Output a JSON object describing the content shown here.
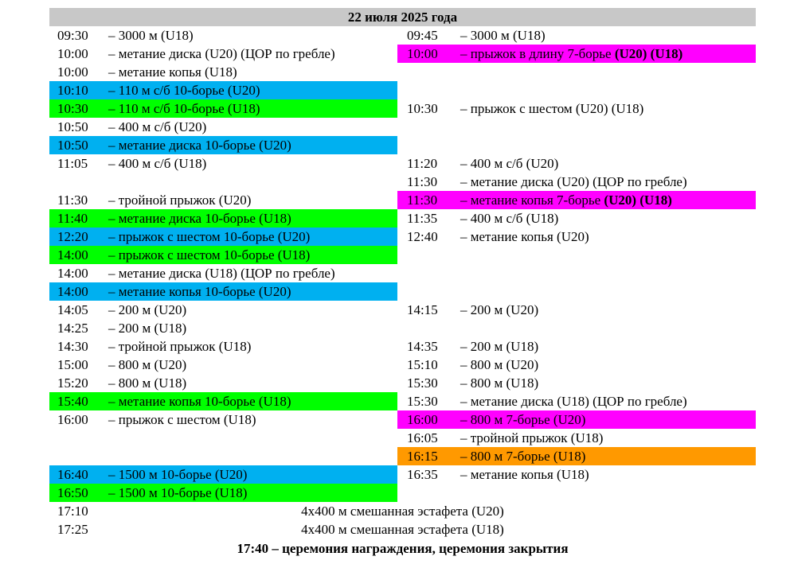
{
  "header": {
    "date": "22 июля 2025 года"
  },
  "rows": [
    {
      "left": {
        "time": "09:30",
        "desc": "– 3000 м (U18)"
      },
      "right": {
        "time": "09:45",
        "desc": "– 3000 м (U18)"
      }
    },
    {
      "left": {
        "time": "10:00",
        "desc": "– метание диска (U20) (ЦОР по гребле)"
      },
      "right": {
        "time": "10:00",
        "desc": "– прыжок в длину 7-борье ",
        "bold": "(U20) (U18)",
        "bg": "#ff00ff"
      }
    },
    {
      "left": {
        "time": "10:00",
        "desc": "– метание копья (U18)"
      }
    },
    {
      "left": {
        "time": "10:10",
        "desc": "– 110 м с/б 10-борье (U20)",
        "bg": "#00b0f0"
      }
    },
    {
      "left": {
        "time": "10:30",
        "desc": "– 110 м с/б 10-борье (U18)",
        "bg": "#00ff00"
      },
      "right": {
        "time": "10:30",
        "desc": "– прыжок с шестом (U20) (U18)"
      }
    },
    {
      "left": {
        "time": "10:50",
        "desc": "– 400 м с/б (U20)"
      }
    },
    {
      "left": {
        "time": "10:50",
        "desc": "– метание диска 10-борье (U20)",
        "bg": "#00b0f0"
      }
    },
    {
      "left": {
        "time": "11:05",
        "desc": "– 400 м с/б (U18)"
      },
      "right": {
        "time": "11:20",
        "desc": "– 400 м с/б (U20)"
      }
    },
    {
      "right": {
        "time": "11:30",
        "desc": "– метание диска (U20) (ЦОР по гребле)"
      }
    },
    {
      "left": {
        "time": "11:30",
        "desc": "– тройной прыжок (U20)"
      },
      "right": {
        "time": "11:30",
        "desc": "– метание копья 7-борье ",
        "bold": "(U20) (U18)",
        "bg": "#ff00ff"
      }
    },
    {
      "left": {
        "time": "11:40",
        "desc": "– метание диска 10-борье (U18)",
        "bg": "#00ff00"
      },
      "right": {
        "time": "11:35",
        "desc": "– 400 м с/б (U18)"
      }
    },
    {
      "left": {
        "time": "12:20",
        "desc": "– прыжок с шестом 10-борье (U20)",
        "bg": "#00b0f0"
      },
      "right": {
        "time": "12:40",
        "desc": "– метание копья (U20)"
      }
    },
    {
      "left": {
        "time": "14:00",
        "desc": "– прыжок с шестом 10-борье (U18)",
        "bg": "#00ff00"
      }
    },
    {
      "left": {
        "time": "14:00",
        "desc": "– метание диска (U18) (ЦОР по гребле)"
      }
    },
    {
      "left": {
        "time": "14:00",
        "desc": "– метание копья 10-борье (U20)",
        "bg": "#00b0f0"
      }
    },
    {
      "left": {
        "time": "14:05",
        "desc": "– 200 м (U20)"
      },
      "right": {
        "time": "14:15",
        "desc": "– 200 м (U20)"
      }
    },
    {
      "left": {
        "time": "14:25",
        "desc": "– 200 м (U18)"
      }
    },
    {
      "left": {
        "time": "14:30",
        "desc": "– тройной прыжок (U18)"
      },
      "right": {
        "time": "14:35",
        "desc": "– 200 м (U18)"
      }
    },
    {
      "left": {
        "time": "15:00",
        "desc": "– 800 м (U20)"
      },
      "right": {
        "time": "15:10",
        "desc": "– 800 м (U20)"
      }
    },
    {
      "left": {
        "time": "15:20",
        "desc": "– 800 м (U18)"
      },
      "right": {
        "time": "15:30",
        "desc": "– 800 м (U18)"
      }
    },
    {
      "left": {
        "time": "15:40",
        "desc": "– метание копья 10-борье (U18)",
        "bg": "#00ff00"
      },
      "right": {
        "time": "15:30",
        "desc": "– метание диска (U18) (ЦОР по гребле)"
      }
    },
    {
      "left": {
        "time": "16:00",
        "desc": "– прыжок с шестом (U18)"
      },
      "right": {
        "time": "16:00",
        "desc": "– 800 м 7-борье (U20)",
        "bg": "#ff00ff"
      }
    },
    {
      "right": {
        "time": "16:05",
        "desc": "– тройной прыжок (U18)"
      }
    },
    {
      "right": {
        "time": "16:15",
        "desc": "– 800 м 7-борье (U18)",
        "bg": "#ff9900"
      }
    },
    {
      "left": {
        "time": "16:40",
        "desc": "– 1500 м 10-борье (U20)",
        "bg": "#00b0f0"
      },
      "right": {
        "time": "16:35",
        "desc": "– метание копья (U18)"
      }
    },
    {
      "left": {
        "time": "16:50",
        "desc": "– 1500 м 10-борье (U18)",
        "bg": "#00ff00"
      }
    },
    {
      "full": {
        "time": "17:10",
        "desc": "4х400 м смешанная эстафета (U20)"
      }
    },
    {
      "full": {
        "time": "17:25",
        "desc": "4х400 м смешанная эстафета (U18)"
      }
    }
  ],
  "footer": {
    "text": "17:40 – церемония награждения, церемония закрытия"
  },
  "colors": {
    "header_bg": "#c8c8c8",
    "u20_decathlon": "#00b0f0",
    "u18_decathlon": "#00ff00",
    "heptathlon": "#ff00ff",
    "heptathlon_u18": "#ff9900"
  }
}
